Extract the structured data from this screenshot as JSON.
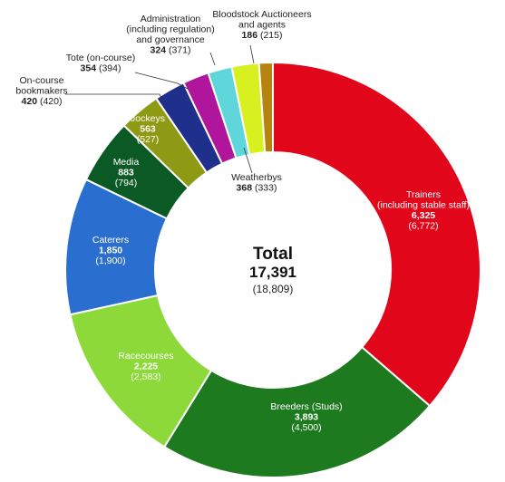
{
  "chart_data": {
    "type": "pie",
    "total": {
      "label": "Total",
      "value": "17,391",
      "previous": "(18,809)"
    },
    "slices": [
      {
        "name": "Trainers (including stable staff)",
        "lines": [
          "Trainers",
          "(including stable staff)"
        ],
        "value": 6325,
        "value_text": "6,325",
        "previous": "(6,772)",
        "color": "#e2061b"
      },
      {
        "name": "Breeders (Studs)",
        "lines": [
          "Breeders (Studs)"
        ],
        "value": 3893,
        "value_text": "3,893",
        "previous": "(4,500)",
        "color": "#1e7a1e"
      },
      {
        "name": "Racecourses",
        "lines": [
          "Racecourses"
        ],
        "value": 2225,
        "value_text": "2,225",
        "previous": "(2,583)",
        "color": "#8dd93a"
      },
      {
        "name": "Caterers",
        "lines": [
          "Caterers"
        ],
        "value": 1850,
        "value_text": "1,850",
        "previous": "(1,900)",
        "color": "#2a6fcf"
      },
      {
        "name": "Media",
        "lines": [
          "Media"
        ],
        "value": 883,
        "value_text": "883",
        "previous": "(794)",
        "color": "#0b5a25"
      },
      {
        "name": "Jockeys",
        "lines": [
          "Jockeys"
        ],
        "value": 563,
        "value_text": "563",
        "previous": "(527)",
        "color": "#8e9a13"
      },
      {
        "name": "On-course bookmakers",
        "lines": [
          "On-course",
          "bookmakers"
        ],
        "value": 420,
        "value_text": "420",
        "previous": "(420)",
        "color": "#1f2f8c"
      },
      {
        "name": "Tote (on-course)",
        "lines": [
          "Tote (on-course)"
        ],
        "value": 354,
        "value_text": "354",
        "previous": "(394)",
        "color": "#b0169b"
      },
      {
        "name": "Administration (including regulation) and governance",
        "lines": [
          "Administration",
          "(including regulation)",
          "and governance"
        ],
        "value": 324,
        "value_text": "324",
        "previous": "(371)",
        "color": "#5ed6da"
      },
      {
        "name": "Weatherbys",
        "lines": [
          "Weatherbys"
        ],
        "value": 368,
        "value_text": "368",
        "previous": "(333)",
        "color": "#d9f020"
      },
      {
        "name": "Bloodstock Auctioneers and agents",
        "lines": [
          "Bloodstock Auctioneers",
          "and agents"
        ],
        "value": 186,
        "value_text": "186",
        "previous": "(215)",
        "color": "#b5830e"
      }
    ]
  }
}
